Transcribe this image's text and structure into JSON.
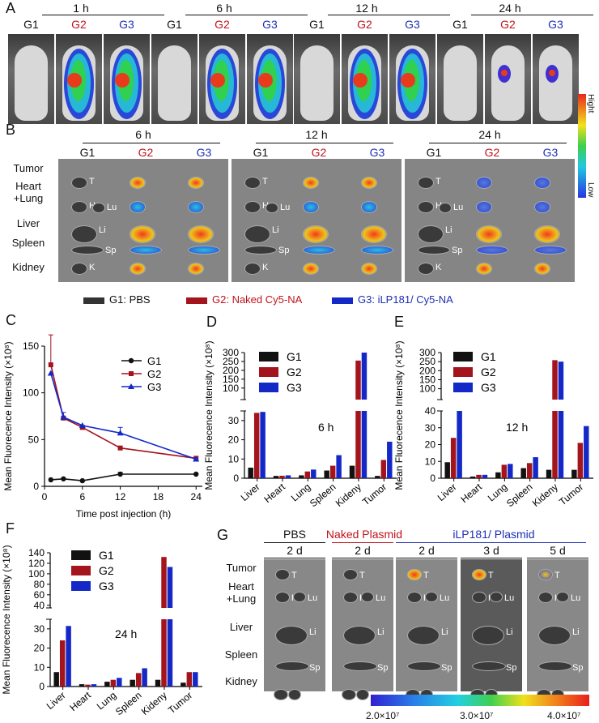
{
  "panels": {
    "A": "A",
    "B": "B",
    "C": "C",
    "D": "D",
    "E": "E",
    "F": "F",
    "G": "G"
  },
  "groups": {
    "g1": "G1",
    "g2": "G2",
    "g3": "G3"
  },
  "panelA": {
    "times": [
      "1 h",
      "6 h",
      "12 h",
      "24 h"
    ],
    "scale_high": "Hight",
    "scale_low": "Low"
  },
  "panelB": {
    "times": [
      "6 h",
      "12 h",
      "24 h"
    ],
    "organs": {
      "tumor": "Tumor",
      "heart_lung": "Heart\n+Lung",
      "liver": "Liver",
      "spleen": "Spleen",
      "kidney": "Kidney"
    },
    "abbr": {
      "T": "T",
      "H": "H",
      "Lu": "Lu",
      "Li": "Li",
      "Sp": "Sp",
      "K": "K"
    }
  },
  "legend": {
    "g1": "G1: PBS",
    "g2": "G2: Naked Cy5-NA",
    "g3": "G3: iLP181/ Cy5-NA"
  },
  "colors": {
    "g1": "#111111",
    "g2": "#a3141c",
    "g3": "#1428c8"
  },
  "panelG": {
    "headers": {
      "pbs": "PBS",
      "naked": "Naked Plasmid",
      "ilp": "iLP181/ Plasmid"
    },
    "days": [
      "2 d",
      "2 d",
      "2 d",
      "3 d",
      "5 d"
    ],
    "organs": {
      "tumor": "Tumor",
      "heart_lung": "Heart\n+Lung",
      "liver": "Liver",
      "spleen": "Spleen",
      "kidney": "Kidney"
    },
    "scale_labels": [
      "2.0×10^7",
      "3.0×10^7",
      "4.0×10^7"
    ]
  },
  "chart_data": [
    {
      "id": "C",
      "type": "line",
      "title": "",
      "xlabel": "Time post  injection (h)",
      "ylabel": "Mean Fluorecence Intensity (×10^8)",
      "x": [
        1,
        3,
        6,
        12,
        24
      ],
      "xlim": [
        0,
        25
      ],
      "xticks": [
        0,
        6,
        12,
        18,
        24
      ],
      "ylim": [
        0,
        150
      ],
      "yticks": [
        0,
        50,
        100,
        150
      ],
      "series": [
        {
          "name": "G1",
          "values": [
            7,
            8,
            6,
            13,
            13
          ],
          "errors": [
            0,
            0,
            0,
            2,
            0
          ]
        },
        {
          "name": "G2",
          "values": [
            130,
            73,
            63,
            41,
            30
          ],
          "errors": [
            32,
            0,
            0,
            0,
            0
          ]
        },
        {
          "name": "G3",
          "values": [
            121,
            74,
            65,
            57,
            29
          ],
          "errors": [
            0,
            5,
            0,
            6,
            0
          ]
        }
      ]
    },
    {
      "id": "D",
      "type": "bar",
      "annotation": "6 h",
      "ylabel": "Mean Fluorecence Intensity (×10^8)",
      "categories": [
        "Liver",
        "Heart",
        "Lung",
        "Spleen",
        "Kideny",
        "Tumor"
      ],
      "axis_break": {
        "lower": [
          0,
          35
        ],
        "upper": [
          35,
          300
        ]
      },
      "lower_ticks": [
        0,
        10,
        20,
        30
      ],
      "upper_ticks": [
        100,
        150,
        200,
        250,
        300
      ],
      "series": [
        {
          "name": "G1",
          "values": [
            5.5,
            1.2,
            1.5,
            4,
            6.5,
            1.2
          ]
        },
        {
          "name": "G2",
          "values": [
            34,
            1.3,
            3.5,
            6.5,
            255,
            9.5
          ]
        },
        {
          "name": "G3",
          "values": [
            34.5,
            1.5,
            4.5,
            12,
            300,
            19
          ]
        }
      ]
    },
    {
      "id": "E",
      "type": "bar",
      "annotation": "12 h",
      "ylabel": "Mean Fluorecence Intensity (×10^8)",
      "categories": [
        "Liver",
        "Heart",
        "Lung",
        "Spleen",
        "Kideny",
        "Tumor"
      ],
      "axis_break": {
        "lower": [
          0,
          40
        ],
        "upper": [
          40,
          300
        ]
      },
      "lower_ticks": [
        0,
        10,
        20,
        30,
        40
      ],
      "upper_ticks": [
        100,
        150,
        200,
        250,
        300
      ],
      "series": [
        {
          "name": "G1",
          "values": [
            9.5,
            1,
            3.5,
            6,
            5,
            5
          ]
        },
        {
          "name": "G2",
          "values": [
            24,
            2,
            8,
            9,
            258,
            21
          ]
        },
        {
          "name": "G3",
          "values": [
            40,
            2,
            8.5,
            12.5,
            250,
            31
          ]
        }
      ]
    },
    {
      "id": "F",
      "type": "bar",
      "annotation": "24 h",
      "ylabel": "Mean Fluorecence Intensity (×10^8)",
      "categories": [
        "Liver",
        "Heart",
        "Lung",
        "Spleen",
        "Kideny",
        "Tumor"
      ],
      "axis_break": {
        "lower": [
          0,
          35
        ],
        "upper": [
          35,
          140
        ]
      },
      "lower_ticks": [
        0,
        10,
        20,
        30
      ],
      "upper_ticks": [
        40,
        60,
        80,
        100,
        120,
        140
      ],
      "series": [
        {
          "name": "G1",
          "values": [
            7.5,
            1.2,
            2.5,
            3.5,
            3.5,
            2
          ]
        },
        {
          "name": "G2",
          "values": [
            24,
            1,
            3.5,
            7,
            132,
            7.5
          ]
        },
        {
          "name": "G3",
          "values": [
            31.5,
            1.2,
            4.5,
            9.5,
            113,
            7.5
          ]
        }
      ]
    }
  ]
}
